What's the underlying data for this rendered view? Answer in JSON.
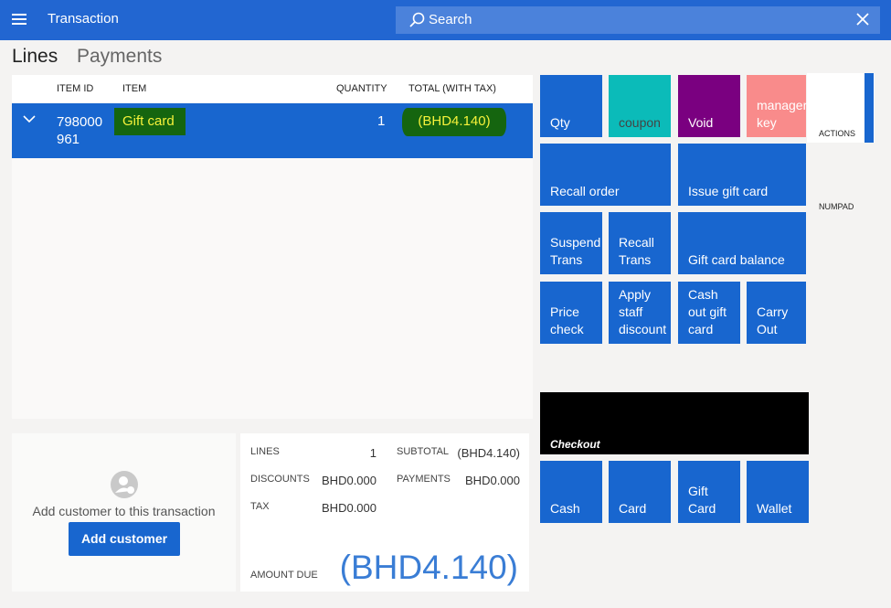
{
  "header": {
    "title": "Transaction",
    "search_placeholder": "Search"
  },
  "tabs": [
    "Lines",
    "Payments"
  ],
  "grid": {
    "columns": [
      "ITEM ID",
      "ITEM",
      "QUANTITY",
      "TOTAL (WITH TAX)"
    ],
    "rows": [
      {
        "item_id_line1": "798000",
        "item_id_line2": "961",
        "item": "Gift card",
        "quantity": "1",
        "total": "(BHD4.140)"
      }
    ]
  },
  "customer": {
    "prompt": "Add customer to this transaction",
    "button": "Add customer"
  },
  "totals": {
    "lines_label": "LINES",
    "lines_value": "1",
    "discounts_label": "DISCOUNTS",
    "discounts_value": "BHD0.000",
    "tax_label": "TAX",
    "tax_value": "BHD0.000",
    "subtotal_label": "SUBTOTAL",
    "subtotal_value": "(BHD4.140)",
    "payments_label": "PAYMENTS",
    "payments_value": "BHD0.000",
    "amount_due_label": "AMOUNT DUE",
    "amount_due_value": "(BHD4.140)"
  },
  "actions": {
    "qty": "Qty",
    "coupon": "coupon",
    "void": "Void",
    "manager_key": "manager\nkey",
    "recall_order": "Recall order",
    "issue_gift_card": "Issue gift card",
    "suspend_trans": "Suspend\nTrans",
    "recall_trans": "Recall\nTrans",
    "gift_card_balance": "Gift card balance",
    "price_check": "Price\ncheck",
    "apply_staff_discount": "Apply\nstaff\ndiscount",
    "cash_out_gift_card": "Cash\nout gift\ncard",
    "carry_out": "Carry\nOut",
    "checkout": "Checkout",
    "cash": "Cash",
    "card": "Card",
    "gift_card": "Gift\nCard",
    "wallet": "Wallet"
  },
  "side_tabs": [
    "ACTIONS",
    "NUMPAD"
  ],
  "colors": {
    "header": "#2266d1",
    "tile_blue": "#1866cf",
    "coupon_teal": "#0bbbb9",
    "void_purple": "#7a0080",
    "manager_pink": "#f98b8b",
    "highlight_green": "#15650f",
    "highlight_text_yellow": "#f6f23a",
    "amount_due": "#3a7dd5"
  }
}
